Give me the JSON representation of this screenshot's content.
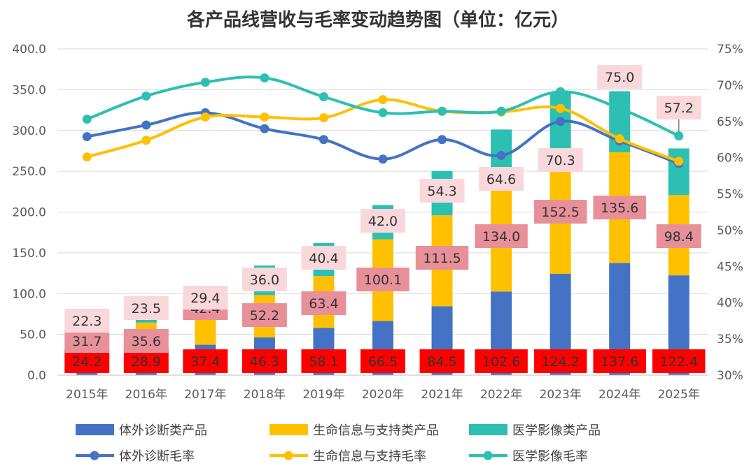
{
  "chart_data": {
    "type": "bar+line",
    "title": "各产品线营收与毛率变动趋势图（单位：亿元）",
    "categories": [
      "2015年",
      "2016年",
      "2017年",
      "2018年",
      "2019年",
      "2020年",
      "2021年",
      "2022年",
      "2023年",
      "2024年",
      "2025年"
    ],
    "bar_series": [
      {
        "name": "体外诊断类产品",
        "color": "#4472C4",
        "values": [
          24.2,
          28.9,
          37.4,
          46.3,
          58.1,
          66.5,
          84.5,
          102.6,
          124.2,
          137.6,
          122.4
        ],
        "labels": [
          "24.2",
          "28.9",
          "37.4",
          "46.3",
          "58.1",
          "66.5",
          "84.5",
          "102.6",
          "124.2",
          "137.6",
          "122.4"
        ]
      },
      {
        "name": "生命信息与支持类产品",
        "color": "#FFC000",
        "values": [
          31.7,
          35.6,
          42.4,
          52.2,
          63.4,
          100.1,
          111.5,
          134.0,
          152.5,
          135.6,
          98.4
        ],
        "labels": [
          "31.7",
          "35.6",
          "42.4",
          "52.2",
          "63.4",
          "100.1",
          "111.5",
          "134.0",
          "152.5",
          "135.6",
          "98.4"
        ]
      },
      {
        "name": "医学影像类产品",
        "color": "#2EBFB3",
        "values": [
          22.3,
          23.5,
          29.4,
          36.0,
          40.4,
          42.0,
          54.3,
          64.6,
          70.3,
          75.0,
          57.2
        ],
        "labels": [
          "22.3",
          "23.5",
          "29.4",
          "36.0",
          "40.4",
          "42.0",
          "54.3",
          "64.6",
          "70.3",
          "75.0",
          "57.2"
        ]
      }
    ],
    "line_series": [
      {
        "name": "体外诊断毛率",
        "color": "#4472C4",
        "values": [
          62.9,
          64.5,
          66.2,
          64.0,
          62.5,
          59.8,
          62.5,
          60.3,
          65.0,
          62.3,
          59.2
        ]
      },
      {
        "name": "生命信息与支持毛率",
        "color": "#FFC000",
        "values": [
          60.1,
          62.4,
          65.6,
          65.6,
          65.5,
          68.0,
          66.4,
          66.3,
          66.8,
          62.6,
          59.5
        ]
      },
      {
        "name": "医学影像毛率",
        "color": "#2EBFB3",
        "values": [
          65.3,
          68.5,
          70.4,
          71.0,
          68.4,
          66.2,
          66.4,
          66.4,
          69.1,
          66.8,
          63.0
        ]
      }
    ],
    "y_left": {
      "min": 0,
      "max": 400,
      "step": 50,
      "ticks": [
        "0.0",
        "50.0",
        "100.0",
        "150.0",
        "200.0",
        "250.0",
        "300.0",
        "350.0",
        "400.0"
      ]
    },
    "y_right": {
      "min": 30,
      "max": 75,
      "step": 5,
      "ticks": [
        "30%",
        "35%",
        "40%",
        "45%",
        "50%",
        "55%",
        "60%",
        "65%",
        "70%",
        "75%"
      ]
    },
    "legend_position": "bottom",
    "grid": true
  }
}
